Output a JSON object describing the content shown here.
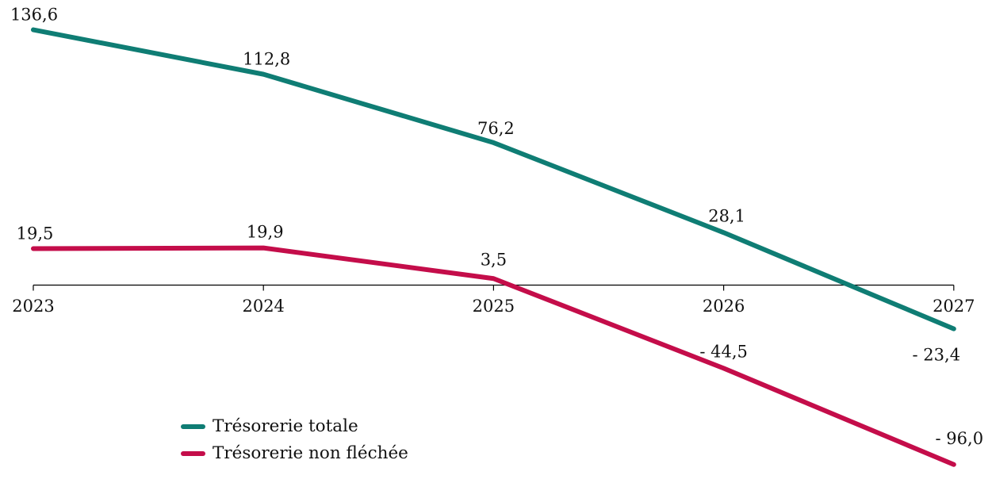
{
  "chart_data": {
    "type": "line",
    "title": "",
    "xlabel": "",
    "ylabel": "",
    "categories": [
      "2023",
      "2024",
      "2025",
      "2026",
      "2027"
    ],
    "series": [
      {
        "name": "Trésorerie totale",
        "color": "#0F7D74",
        "values": [
          136.6,
          112.8,
          76.2,
          28.1,
          -23.4
        ],
        "point_labels": [
          "136,6",
          "112,8",
          "76,2",
          "28,1",
          "- 23,4"
        ],
        "label_offsets": [
          [
            1,
            -12
          ],
          [
            4,
            -12
          ],
          [
            3,
            -11
          ],
          [
            4,
            -14
          ],
          [
            -22,
            40
          ]
        ]
      },
      {
        "name": "Trésorerie non fléchée",
        "color": "#C40D4A",
        "values": [
          19.5,
          19.9,
          3.5,
          -44.5,
          -96.0
        ],
        "point_labels": [
          "19,5",
          "19,9",
          "3,5",
          "- 44,5",
          "- 96,0"
        ],
        "label_offsets": [
          [
            2,
            -12
          ],
          [
            2,
            -13
          ],
          [
            0,
            -17
          ],
          [
            0,
            -14
          ],
          [
            7,
            -26
          ]
        ]
      }
    ],
    "ylim": [
      -115,
      150
    ],
    "zero_axis": true,
    "grid": false,
    "legend_position": "bottom-left",
    "axis_color": "#000000",
    "label_color": "#111111",
    "decimal_separator": ","
  }
}
